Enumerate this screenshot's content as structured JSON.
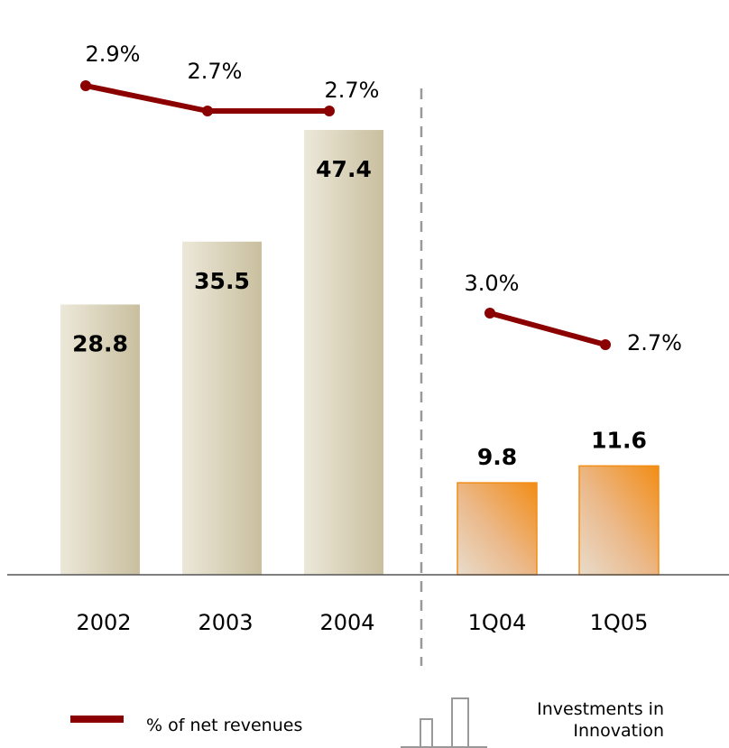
{
  "chart_data": {
    "type": "bar",
    "categories": [
      "2002",
      "2003",
      "2004",
      "1Q04",
      "1Q05"
    ],
    "groups": [
      {
        "categories": [
          "2002",
          "2003",
          "2004"
        ],
        "style": "annual"
      },
      {
        "categories": [
          "1Q04",
          "1Q05"
        ],
        "style": "quarterly"
      }
    ],
    "series": [
      {
        "name": "Investments in Innovation",
        "type": "bar",
        "values": [
          28.8,
          35.5,
          47.4,
          9.8,
          11.6
        ],
        "labels": [
          "28.8",
          "35.5",
          "47.4",
          "9.8",
          "11.6"
        ]
      },
      {
        "name": "% of net revenues",
        "type": "line",
        "values": [
          2.9,
          2.7,
          2.7,
          3.0,
          2.7
        ],
        "labels": [
          "2.9%",
          "2.7%",
          "2.7%",
          "3.0%",
          "2.7%"
        ],
        "segments": [
          [
            0,
            1,
            2
          ],
          [
            3,
            4
          ]
        ]
      }
    ],
    "ylim": [
      0,
      50
    ],
    "grid": false,
    "legend_position": "bottom",
    "divider_between_groups": true
  },
  "legend": {
    "line_label": "% of net revenues",
    "bar_label_line1": "Investments in",
    "bar_label_line2": "Innovation"
  },
  "colors": {
    "annual_bar_light": "#ece8d9",
    "annual_bar_dark": "#c9bf9f",
    "quarterly_bar_light": "#ead7c5",
    "quarterly_bar_dark": "#f28d16",
    "line": "#8b0000",
    "axis": "#555555",
    "divider": "#999999"
  }
}
